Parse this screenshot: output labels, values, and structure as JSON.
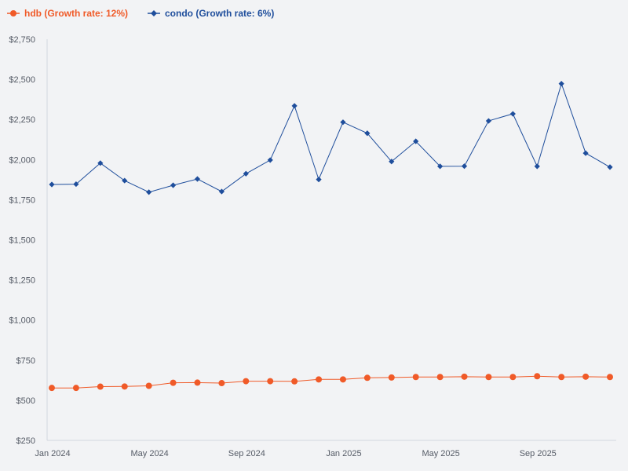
{
  "chart_data": {
    "type": "line",
    "title": "",
    "xlabel": "",
    "ylabel": "",
    "ylim": [
      250,
      2750
    ],
    "y_ticks": [
      250,
      500,
      750,
      1000,
      1250,
      1500,
      1750,
      2000,
      2250,
      2500,
      2750
    ],
    "y_tick_labels": [
      "$250",
      "$500",
      "$750",
      "$1,000",
      "$1,250",
      "$1,500",
      "$1,750",
      "$2,000",
      "$2,250",
      "$2,500",
      "$2,750"
    ],
    "x": [
      "2024-01",
      "2024-02",
      "2024-03",
      "2024-04",
      "2024-05",
      "2024-06",
      "2024-07",
      "2024-08",
      "2024-09",
      "2024-10",
      "2024-11",
      "2024-12",
      "2025-01",
      "2025-02",
      "2025-03",
      "2025-04",
      "2025-05",
      "2025-06",
      "2025-07",
      "2025-08",
      "2025-09",
      "2025-10",
      "2025-11",
      "2025-12"
    ],
    "x_tick_indices": [
      0,
      4,
      8,
      12,
      16,
      20
    ],
    "x_tick_labels": [
      "Jan 2024",
      "May 2024",
      "Sep 2024",
      "Jan 2025",
      "May 2025",
      "Sep 2025"
    ],
    "grid": false,
    "legend_position": "top-left",
    "series": [
      {
        "name": "hdb",
        "legend_label": "hdb (Growth rate: 12%)",
        "color": "#f05a28",
        "marker": "circle",
        "values": [
          577,
          577,
          585,
          586,
          590,
          609,
          610,
          607,
          619,
          619,
          618,
          630,
          630,
          640,
          642,
          645,
          645,
          647,
          645,
          645,
          650,
          645,
          647,
          645
        ]
      },
      {
        "name": "condo",
        "legend_label": "condo (Growth rate: 6%)",
        "color": "#1f4e9c",
        "marker": "diamond",
        "values": [
          1845,
          1847,
          1978,
          1869,
          1797,
          1840,
          1879,
          1801,
          1912,
          1997,
          2335,
          1876,
          2233,
          2164,
          1988,
          2114,
          1958,
          1959,
          2241,
          2285,
          1958,
          2473,
          2040,
          1953
        ]
      }
    ]
  }
}
